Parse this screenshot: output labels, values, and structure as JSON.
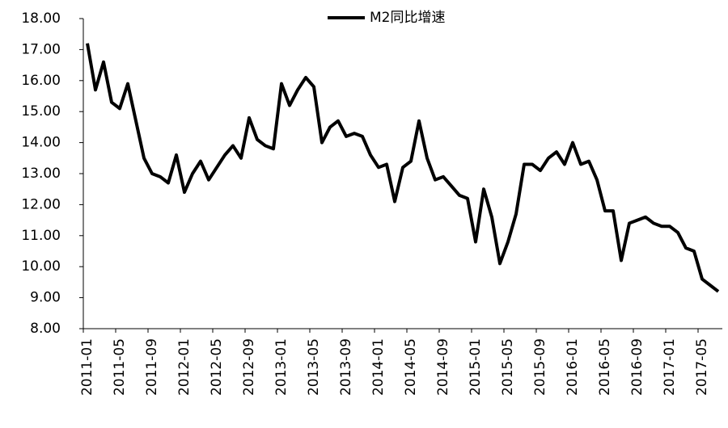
{
  "chart_data": {
    "type": "line",
    "categories": [
      "2011-01",
      null,
      null,
      null,
      "2011-05",
      null,
      null,
      null,
      "2011-09",
      null,
      null,
      null,
      "2012-01",
      null,
      null,
      null,
      "2012-05",
      null,
      null,
      null,
      "2012-09",
      null,
      null,
      null,
      "2013-01",
      null,
      null,
      null,
      "2013-05",
      null,
      null,
      null,
      "2013-09",
      null,
      null,
      null,
      "2014-01",
      null,
      null,
      null,
      "2014-05",
      null,
      null,
      null,
      "2014-09",
      null,
      null,
      null,
      "2015-01",
      null,
      null,
      null,
      "2015-05",
      null,
      null,
      null,
      "2015-09",
      null,
      null,
      null,
      "2016-01",
      null,
      null,
      null,
      "2016-05",
      null,
      null,
      null,
      "2016-09",
      null,
      null,
      null,
      "2017-01",
      null,
      null,
      null,
      "2017-05",
      null,
      null
    ],
    "series": [
      {
        "name": "M2同比增速",
        "color": "#000000",
        "values": [
          17.2,
          15.7,
          16.6,
          15.3,
          15.1,
          15.9,
          14.7,
          13.5,
          13.0,
          12.9,
          12.7,
          13.6,
          12.4,
          13.0,
          13.4,
          12.8,
          13.2,
          13.6,
          13.9,
          13.5,
          14.8,
          14.1,
          13.9,
          13.8,
          15.9,
          15.2,
          15.7,
          16.1,
          15.8,
          14.0,
          14.5,
          14.7,
          14.2,
          14.3,
          14.2,
          13.6,
          13.2,
          13.3,
          12.1,
          13.2,
          13.4,
          14.7,
          13.5,
          12.8,
          12.9,
          12.6,
          12.3,
          12.2,
          10.8,
          12.5,
          11.6,
          10.1,
          10.8,
          11.7,
          13.3,
          13.3,
          13.1,
          13.5,
          13.7,
          13.3,
          14.0,
          13.3,
          13.4,
          12.8,
          11.8,
          11.8,
          10.2,
          11.4,
          11.5,
          11.6,
          11.4,
          11.3,
          11.3,
          11.1,
          10.6,
          10.5,
          9.6,
          9.4,
          9.2
        ]
      }
    ],
    "ylim": [
      8,
      18
    ],
    "yticks": [
      {
        "value": 8,
        "label": "8.00"
      },
      {
        "value": 9,
        "label": "9.00"
      },
      {
        "value": 10,
        "label": "10.00"
      },
      {
        "value": 11,
        "label": "11.00"
      },
      {
        "value": 12,
        "label": "12.00"
      },
      {
        "value": 13,
        "label": "13.00"
      },
      {
        "value": 14,
        "label": "14.00"
      },
      {
        "value": 15,
        "label": "15.00"
      },
      {
        "value": 16,
        "label": "16.00"
      },
      {
        "value": 17,
        "label": "17.00"
      },
      {
        "value": 18,
        "label": "18.00"
      }
    ],
    "grid": false,
    "legend": "top"
  }
}
